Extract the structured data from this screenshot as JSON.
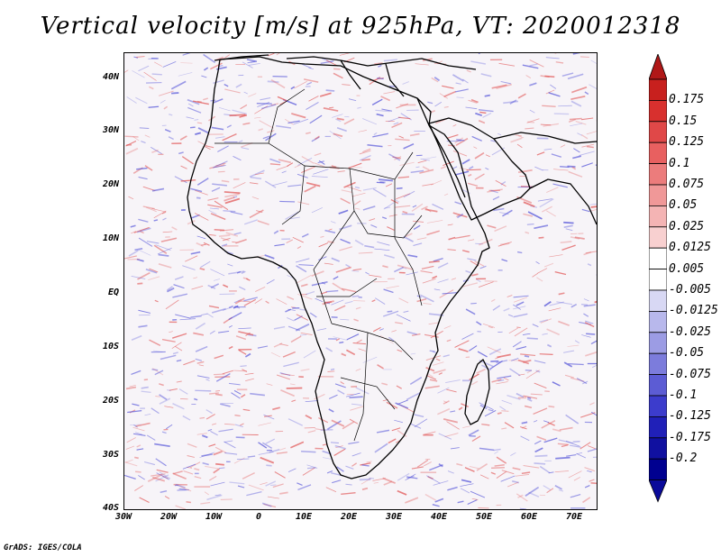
{
  "title": "Vertical velocity [m/s] at 925hPa, VT: 2020012318",
  "credit": "GrADS: IGES/COLA",
  "map": {
    "region": "Africa",
    "lat_labels": [
      "40N",
      "30N",
      "20N",
      "10N",
      "EQ",
      "10S",
      "20S",
      "30S",
      "40S"
    ],
    "lon_labels": [
      "30W",
      "20W",
      "10W",
      "0",
      "10E",
      "20E",
      "30E",
      "40E",
      "50E",
      "60E",
      "70E"
    ]
  },
  "colorbar": {
    "levels": [
      "0.175",
      "0.15",
      "0.125",
      "0.1",
      "0.075",
      "0.05",
      "0.025",
      "0.0125",
      "0.005",
      "-0.005",
      "-0.0125",
      "-0.025",
      "-0.05",
      "-0.075",
      "-0.1",
      "-0.125",
      "-0.175",
      "-0.2"
    ],
    "colors": [
      "#c8201e",
      "#d8302e",
      "#e04848",
      "#e86060",
      "#ec7c7c",
      "#f09898",
      "#f4b4b4",
      "#f8d0d0",
      "#ffffff",
      "#ffffff",
      "#d8d8f4",
      "#b8b8ec",
      "#9c9ce4",
      "#7c7cdc",
      "#5c5cd4",
      "#3c3ccc",
      "#2020b8",
      "#1010a0",
      "#000090"
    ],
    "top_arrow_color": "#b01818",
    "bottom_arrow_color": "#0a0a9a"
  },
  "colors": {
    "background": "#ffffff",
    "ocean_base": "#f7f4f8",
    "land_outline": "#000000",
    "updraft": "#e05050",
    "downdraft": "#5050d8"
  }
}
